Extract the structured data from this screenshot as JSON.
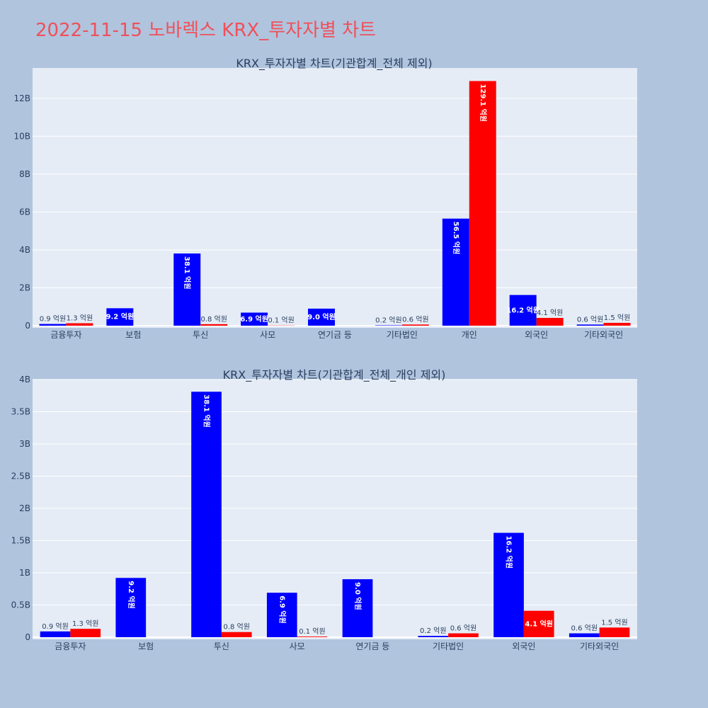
{
  "title": "2022-11-15 노바렉스 KRX_투자자별 차트",
  "colors": {
    "buy": "#0000ff",
    "sell": "#ff0000",
    "plot_bg": "#e5ecf6",
    "page_bg": "#b0c4de",
    "title": "#f0505a"
  },
  "chart_data": [
    {
      "type": "bar",
      "title": "KRX_투자자별 차트(기관합계_전체 제외)",
      "categories": [
        "금융투자",
        "보험",
        "투신",
        "사모",
        "연기금 등",
        "기타법인",
        "개인",
        "외국인",
        "기타외국인"
      ],
      "series": [
        {
          "values": [
            90000000,
            920000000,
            3810000000,
            690000000,
            900000000,
            20000000,
            5650000000,
            1620000000,
            60000000
          ],
          "labels": [
            "0.9 억원",
            "9.2 억원",
            "38.1 억원",
            "6.9 억원",
            "9.0 억원",
            "0.2 억원",
            "56.5 억원",
            "16.2 억원",
            "0.6 억원"
          ]
        },
        {
          "values": [
            130000000,
            0,
            80000000,
            10000000,
            0,
            60000000,
            12910000000,
            410000000,
            150000000
          ],
          "labels": [
            "1.3 억원",
            "",
            "0.8 억원",
            "0.1 억원",
            "",
            "0.6 억원",
            "129.1 억원",
            "4.1 억원",
            "1.5 억원"
          ]
        }
      ],
      "ylim": [
        0,
        13600000000
      ],
      "yticks": [
        0,
        2000000000,
        4000000000,
        6000000000,
        8000000000,
        10000000000,
        12000000000
      ],
      "ytick_labels": [
        "0",
        "2B",
        "4B",
        "6B",
        "8B",
        "10B",
        "12B"
      ],
      "grid": true
    },
    {
      "type": "bar",
      "title": "KRX_투자자별 차트(기관합계_전체_개인 제외)",
      "categories": [
        "금융투자",
        "보험",
        "투신",
        "사모",
        "연기금 등",
        "기타법인",
        "외국인",
        "기타외국인"
      ],
      "series": [
        {
          "values": [
            90000000,
            920000000,
            3810000000,
            690000000,
            900000000,
            20000000,
            1620000000,
            60000000
          ],
          "labels": [
            "0.9 억원",
            "9.2 억원",
            "38.1 억원",
            "6.9 억원",
            "9.0 억원",
            "0.2 억원",
            "16.2 억원",
            "0.6 억원"
          ]
        },
        {
          "values": [
            130000000,
            0,
            80000000,
            10000000,
            0,
            60000000,
            410000000,
            150000000
          ],
          "labels": [
            "1.3 억원",
            "",
            "0.8 억원",
            "0.1 억원",
            "",
            "0.6 억원",
            "4.1 억원",
            "1.5 억원"
          ]
        }
      ],
      "ylim": [
        0,
        4000000000
      ],
      "yticks": [
        0,
        500000000,
        1000000000,
        1500000000,
        2000000000,
        2500000000,
        3000000000,
        3500000000,
        4000000000
      ],
      "ytick_labels": [
        "0",
        "0.5B",
        "1B",
        "1.5B",
        "2B",
        "2.5B",
        "3B",
        "3.5B",
        "4B"
      ],
      "grid": true
    }
  ]
}
